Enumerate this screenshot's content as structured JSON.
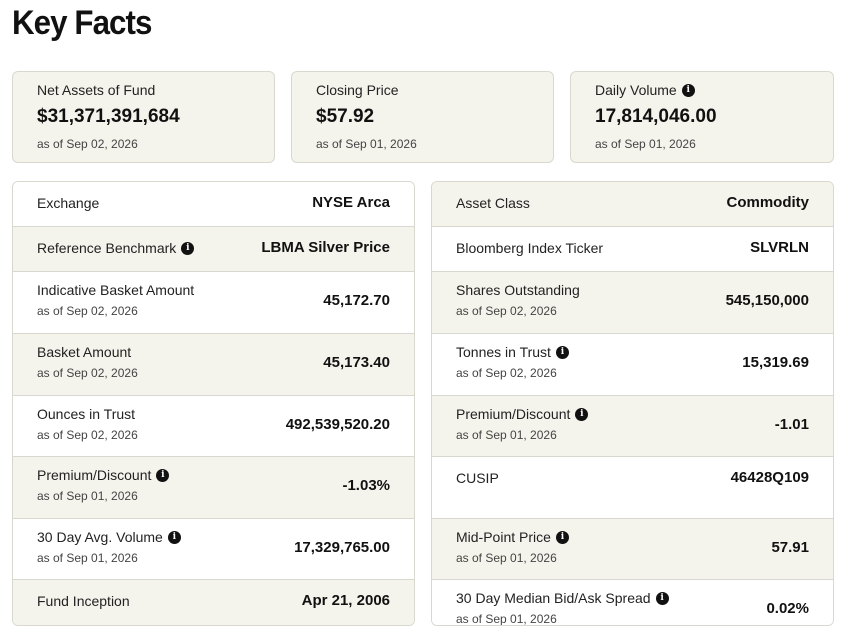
{
  "page_title": "Key Facts",
  "summary": [
    {
      "label": "Net Assets of Fund",
      "value": "$31,371,391,684",
      "as_of": "as of Sep 02, 2026",
      "info": false
    },
    {
      "label": "Closing Price",
      "value": "$57.92",
      "as_of": "as of Sep 01, 2026",
      "info": false
    },
    {
      "label": "Daily Volume",
      "value": "17,814,046.00",
      "as_of": "as of Sep 01, 2026",
      "info": true
    }
  ],
  "info_glyph": "i",
  "left_table": [
    {
      "label": "Exchange",
      "value": "NYSE Arca",
      "as_of": "",
      "info": false
    },
    {
      "label": "Reference Benchmark",
      "value": "LBMA Silver Price",
      "as_of": "",
      "info": true
    },
    {
      "label": "Indicative Basket Amount",
      "value": "45,172.70",
      "as_of": "as of Sep 02, 2026",
      "info": false
    },
    {
      "label": "Basket Amount",
      "value": "45,173.40",
      "as_of": "as of Sep 02, 2026",
      "info": false
    },
    {
      "label": "Ounces in Trust",
      "value": "492,539,520.20",
      "as_of": "as of Sep 02, 2026",
      "info": false
    },
    {
      "label": "Premium/Discount",
      "value": "-1.03%",
      "as_of": "as of Sep 01, 2026",
      "info": true
    },
    {
      "label": "30 Day Avg. Volume",
      "value": "17,329,765.00",
      "as_of": "as of Sep 01, 2026",
      "info": true
    },
    {
      "label": "Fund Inception",
      "value": "Apr 21, 2006",
      "as_of": "",
      "info": false
    }
  ],
  "right_table": [
    {
      "label": "Asset Class",
      "value": "Commodity",
      "as_of": "",
      "info": false
    },
    {
      "label": "Bloomberg Index Ticker",
      "value": "SLVRLN",
      "as_of": "",
      "info": false
    },
    {
      "label": "Shares Outstanding",
      "value": "545,150,000",
      "as_of": "as of Sep 02, 2026",
      "info": false
    },
    {
      "label": "Tonnes in Trust",
      "value": "15,319.69",
      "as_of": "as of Sep 02, 2026",
      "info": true
    },
    {
      "label": "Premium/Discount",
      "value": "-1.01",
      "as_of": "as of Sep 01, 2026",
      "info": true
    },
    {
      "label": "CUSIP",
      "value": "46428Q109",
      "as_of": "",
      "info": false
    },
    {
      "label": "Mid-Point Price",
      "value": "57.91",
      "as_of": "as of Sep 01, 2026",
      "info": true
    },
    {
      "label": "30 Day Median Bid/Ask Spread",
      "value": "0.02%",
      "as_of": "as of Sep 01, 2026",
      "info": true
    }
  ]
}
